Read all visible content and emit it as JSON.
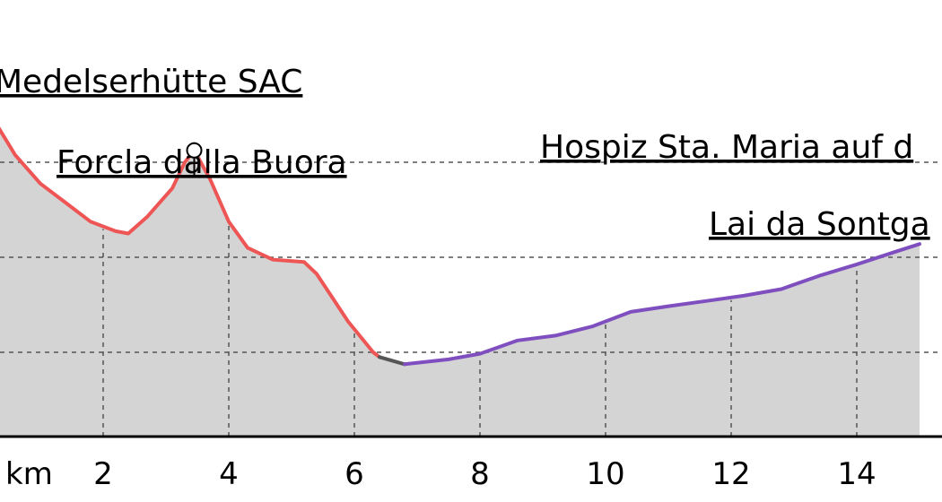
{
  "chart_data": {
    "type": "area",
    "title": "",
    "xlabel": "",
    "ylabel": "",
    "x_unit_label": "km",
    "xlim": [
      0,
      15
    ],
    "x_ticks": [
      2,
      4,
      6,
      8,
      10,
      12,
      14
    ],
    "x_tick_labels": [
      "2",
      "4",
      "6",
      "8",
      "10",
      "12",
      "14"
    ],
    "grid": true,
    "legend": "none",
    "fill_color": "#d4d4d4",
    "series": [
      {
        "color": "#ee5555",
        "x": [
          0,
          0.6,
          1.0,
          1.4,
          1.8,
          2.2,
          2.4,
          2.7,
          3.1,
          3.3,
          3.45,
          3.7,
          4.0,
          4.3,
          4.7,
          5.2,
          5.4,
          5.9,
          6.3,
          6.4
        ],
        "y": [
          2520,
          2390,
          2330,
          2290,
          2250,
          2230,
          2225,
          2260,
          2320,
          2375,
          2400,
          2340,
          2250,
          2195,
          2170,
          2165,
          2140,
          2040,
          1975,
          1965
        ]
      },
      {
        "color": "#555555",
        "x": [
          6.4,
          6.8
        ],
        "y": [
          1965,
          1950
        ]
      },
      {
        "color": "#7f4fc0",
        "x": [
          6.8,
          7.5,
          8.0,
          8.6,
          9.2,
          9.8,
          10.4,
          11.0,
          11.6,
          12.2,
          12.8,
          13.4,
          14.0,
          14.6,
          15.0
        ],
        "y": [
          1950,
          1960,
          1972,
          2000,
          2010,
          2030,
          2060,
          2072,
          2083,
          2094,
          2108,
          2136,
          2160,
          2186,
          2203
        ]
      }
    ],
    "reference_levels": [
      1975,
      2175,
      2375
    ],
    "annotations": [
      {
        "text": "Medelserhütte SAC",
        "x": 0,
        "y": 2520
      },
      {
        "text": "Forcla dalla Buora",
        "x": 3.45,
        "y": 2400
      },
      {
        "text": "Hospiz Sta. Maria auf d",
        "x": 15,
        "y": 2375
      },
      {
        "text": "Lai da Sontga",
        "x": 15,
        "y": 2203
      }
    ],
    "summit_marker": {
      "x": 3.45,
      "y": 2400
    }
  }
}
